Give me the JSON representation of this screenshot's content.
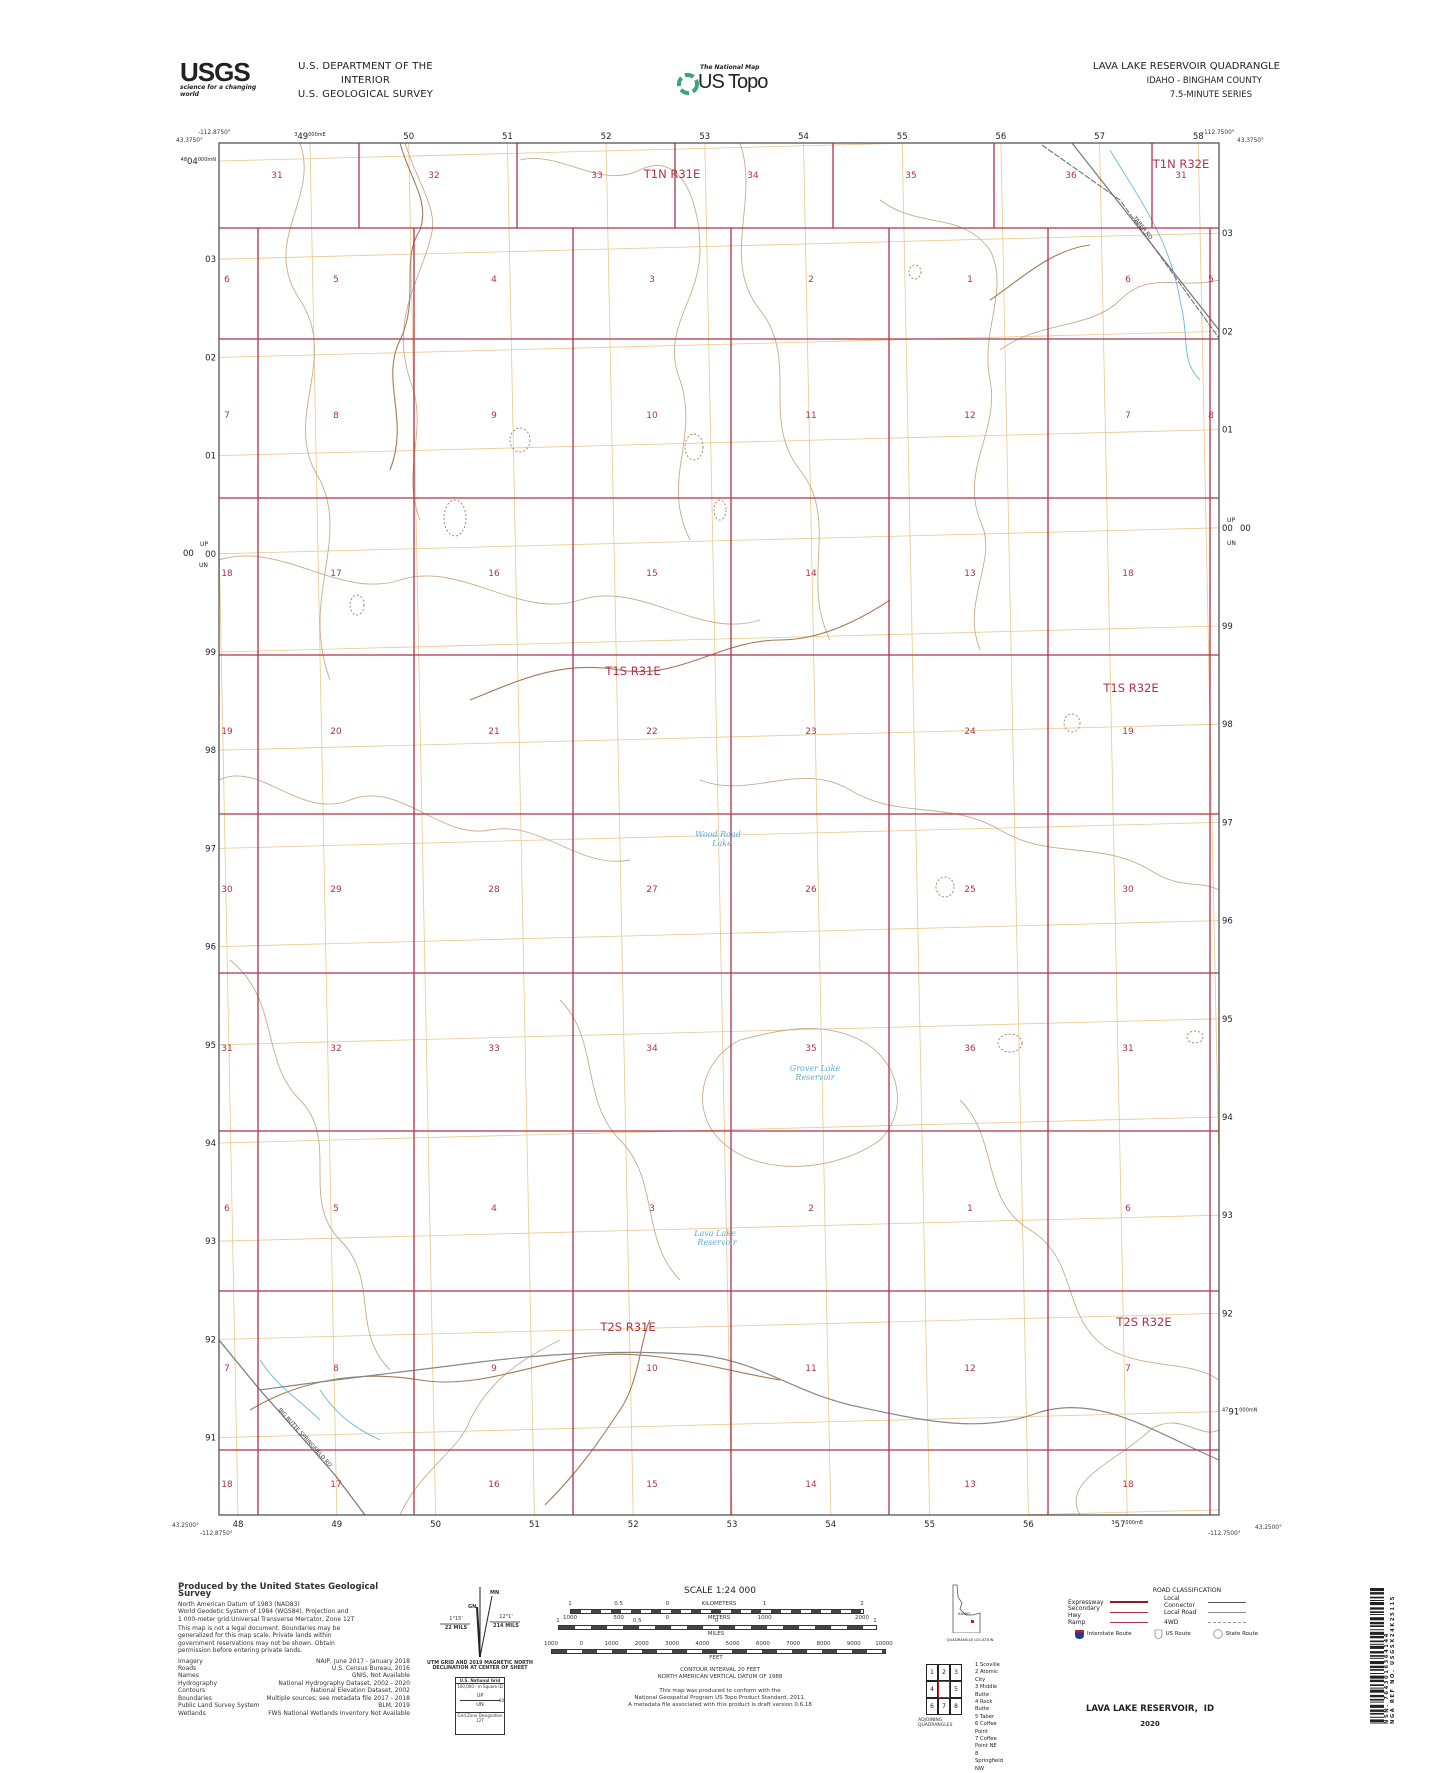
{
  "header": {
    "agency_logo": "USGS",
    "agency_tagline": "science for a changing world",
    "department": "U.S. DEPARTMENT OF THE INTERIOR",
    "survey": "U.S. GEOLOGICAL SURVEY",
    "national_map_label": "The National Map",
    "us_topo_label": "US Topo",
    "quadrangle_title": "LAVA LAKE RESERVOIR QUADRANGLE",
    "state_county": "IDAHO - BINGHAM COUNTY",
    "series": "7.5-MINUTE SERIES"
  },
  "map": {
    "corners": {
      "nw_lon": "-112.8750°",
      "nw_lat": "43.3750°",
      "ne_lon": "-112.7500°",
      "ne_lat": "43.3750°",
      "sw_lon": "-112.8750°",
      "sw_lat": "43.2500°",
      "se_lon": "-112.7500°",
      "se_lat": "43.2500°"
    },
    "eastings_top": [
      {
        "prefix": "3",
        "main": "49",
        "suffix": "000mE"
      },
      {
        "main": "50"
      },
      {
        "main": "51"
      },
      {
        "main": "52"
      },
      {
        "main": "53"
      },
      {
        "main": "54"
      },
      {
        "main": "55"
      },
      {
        "main": "56"
      },
      {
        "main": "57"
      },
      {
        "main": "58"
      }
    ],
    "eastings_bottom": [
      {
        "main": "48"
      },
      {
        "main": "49"
      },
      {
        "main": "50"
      },
      {
        "main": "51"
      },
      {
        "main": "52"
      },
      {
        "main": "53"
      },
      {
        "main": "54"
      },
      {
        "main": "55"
      },
      {
        "main": "56"
      },
      {
        "prefix": "3",
        "main": "57",
        "suffix": "000mE"
      }
    ],
    "northings_left": [
      {
        "prefix": "48",
        "main": "04",
        "suffix": "000mN"
      },
      {
        "main": "03"
      },
      {
        "main": "02"
      },
      {
        "main": "01"
      },
      {
        "main": "00"
      },
      {
        "main": "99"
      },
      {
        "main": "98"
      },
      {
        "main": "97"
      },
      {
        "main": "96"
      },
      {
        "main": "95"
      },
      {
        "main": "94"
      },
      {
        "main": "93"
      },
      {
        "main": "92"
      },
      {
        "main": "91"
      }
    ],
    "northings_right": [
      {
        "main": "03"
      },
      {
        "main": "02"
      },
      {
        "main": "01"
      },
      {
        "main": "00"
      },
      {
        "main": "99"
      },
      {
        "main": "98"
      },
      {
        "main": "97"
      },
      {
        "main": "96"
      },
      {
        "main": "95"
      },
      {
        "main": "94"
      },
      {
        "main": "93"
      },
      {
        "main": "92"
      },
      {
        "prefix": "47",
        "main": "91",
        "suffix": "000mN"
      }
    ],
    "grid_zone_left": {
      "up": "UP",
      "value": "00",
      "un": "UN"
    },
    "grid_zone_right": {
      "up": "UP",
      "value": "00",
      "un": "UN"
    },
    "townships": [
      {
        "label": "T1N R31E"
      },
      {
        "label": "T1N R32E"
      },
      {
        "label": "T1S R31E"
      },
      {
        "label": "T1S R32E"
      },
      {
        "label": "T2S R31E"
      },
      {
        "label": "T2S R32E"
      }
    ],
    "section_rows": [
      [
        "31",
        "32",
        "33",
        "34",
        "35",
        "36",
        "31"
      ],
      [
        "6",
        "5",
        "4",
        "3",
        "2",
        "1",
        "6",
        "5"
      ],
      [
        "7",
        "8",
        "9",
        "10",
        "11",
        "12",
        "7",
        "8"
      ],
      [
        "18",
        "17",
        "16",
        "15",
        "14",
        "13",
        "18"
      ],
      [
        "19",
        "20",
        "21",
        "22",
        "23",
        "24",
        "19"
      ],
      [
        "30",
        "29",
        "28",
        "27",
        "26",
        "25",
        "30"
      ],
      [
        "31",
        "32",
        "33",
        "34",
        "35",
        "36",
        "31"
      ],
      [
        "6",
        "5",
        "4",
        "3",
        "2",
        "1",
        "6"
      ],
      [
        "7",
        "8",
        "9",
        "10",
        "11",
        "12",
        "7"
      ],
      [
        "18",
        "17",
        "16",
        "15",
        "14",
        "13",
        "18"
      ]
    ],
    "water_features": [
      {
        "line1": "Wood Road",
        "line2": "Lake"
      },
      {
        "line1": "Grover Lake",
        "line2": "Reservoir"
      },
      {
        "line1": "Lava Lake",
        "line2": "Reservoir"
      }
    ],
    "roads": [
      {
        "label": "TABER RD"
      },
      {
        "label": "BIG BUTTE SPRINGFIELD RD"
      }
    ],
    "colors": {
      "section_lines": "#b0334a",
      "utm_grid": "#e8c98a",
      "contours": "#c9ab8c",
      "index_contours": "#a67a55",
      "water": "#6fb6d9",
      "roads": "#8a8a8a",
      "frame": "#555555"
    }
  },
  "footer": {
    "credits": {
      "title": "Produced by the United States Geological Survey",
      "lines": [
        "North American Datum of 1983 (NAD83)",
        "World Geodetic System of 1984 (WGS84). Projection and",
        "1 000-meter grid:Universal Transverse Mercator, Zone 12T"
      ],
      "disclaimer": "This map is not a legal document. Boundaries may be generalized for this map scale. Private lands within government reservations may not be shown. Obtain permission before entering private lands.",
      "sources": [
        {
          "item": "Imagery",
          "source": "NAIP, June 2017 - January 2018"
        },
        {
          "item": "Roads",
          "source": "U.S. Census Bureau, 2016"
        },
        {
          "item": "Names",
          "source": "GNIS, Not Available"
        },
        {
          "item": "Hydrography",
          "source": "National Hydrography Dataset, 2002 - 2020"
        },
        {
          "item": "Contours",
          "source": "National Elevation Dataset, 2002"
        },
        {
          "item": "Boundaries",
          "source": "Multiple sources; see metadata file 2017 - 2018"
        },
        {
          "item": "Public Land Survey System",
          "source": "BLM, 2019"
        },
        {
          "item": "Wetlands",
          "source": "FWS National Wetlands Inventory Not Available"
        }
      ]
    },
    "declination": {
      "mn_label": "MN",
      "gn_label": "GN",
      "gn_angle": "1°15'",
      "gn_mils": "22 MILS",
      "mn_angle": "12°1'",
      "mn_mils": "214 MILS",
      "caption_line1": "UTM GRID AND 2019 MAGNETIC NORTH",
      "caption_line2": "DECLINATION AT CENTER OF SHEET"
    },
    "national_grid": {
      "title": "U.S. National Grid",
      "square_id_label": "100,000 - m Square ID",
      "up": "UP",
      "un": "UN",
      "value": "00",
      "zone_label": "Grid Zone Designation",
      "zone": "12T"
    },
    "scale": {
      "title": "SCALE 1:24 000",
      "kilometers": {
        "label": "KILOMETERS",
        "ticks": [
          "1",
          "0.5",
          "0",
          "1",
          "2"
        ]
      },
      "meters": {
        "label": "METERS",
        "ticks": [
          "1000",
          "500",
          "0",
          "1000",
          "2000"
        ]
      },
      "miles": {
        "label": "MILES",
        "ticks": [
          "1",
          "0.5",
          "0",
          "1"
        ]
      },
      "feet": {
        "label": "FEET",
        "ticks": [
          "1000",
          "0",
          "1000",
          "2000",
          "3000",
          "4000",
          "5000",
          "6000",
          "7000",
          "8000",
          "9000",
          "10000"
        ]
      }
    },
    "contour": {
      "interval": "CONTOUR INTERVAL 20 FEET",
      "datum": "NORTH AMERICAN VERTICAL DATUM OF 1988"
    },
    "standard": {
      "line1": "This map was produced to conform with the",
      "line2": "National Geospatial Program US Topo Product Standard, 2011.",
      "line3": "A metadata file associated with this product is draft version 0.6.18"
    },
    "location": {
      "state": "IDAHO",
      "caption": "QUADRANGLE LOCATION"
    },
    "adjoining": {
      "caption": "ADJOINING QUADRANGLES",
      "cells": [
        "1",
        "2",
        "3",
        "4",
        "5",
        "6",
        "7",
        "8"
      ],
      "names": [
        "1 Scoville",
        "2 Atomic City",
        "3 Middle Butte",
        "4 Rock Butte",
        "5 Taber",
        "6 Coffee Point",
        "7 Coffee Point NE",
        "8 Springfield NW"
      ]
    },
    "road_classification": {
      "title": "ROAD CLASSIFICATION",
      "left": [
        {
          "label": "Expressway",
          "color": "#8b1a2b"
        },
        {
          "label": "Secondary Hwy",
          "color": "#b0334a"
        },
        {
          "label": "Ramp",
          "color": "#b0334a"
        }
      ],
      "right": [
        {
          "label": "Local Connector",
          "color": "#555555"
        },
        {
          "label": "Local Road",
          "color": "#888888"
        },
        {
          "label": "4WD",
          "color": "#999999"
        }
      ],
      "shields": [
        {
          "label": "Interstate Route",
          "icon": "interstate-shield-icon"
        },
        {
          "label": "US Route",
          "icon": "us-route-shield-icon"
        },
        {
          "label": "State Route",
          "icon": "state-route-circle-icon"
        }
      ]
    },
    "sheet_title": "LAVA LAKE RESERVOIR,  ID",
    "year": "2020",
    "barcode": {
      "nsn": "NSN. 7643016364144",
      "nga_ref": "NGA REF NO. USGSX24K25115"
    }
  }
}
